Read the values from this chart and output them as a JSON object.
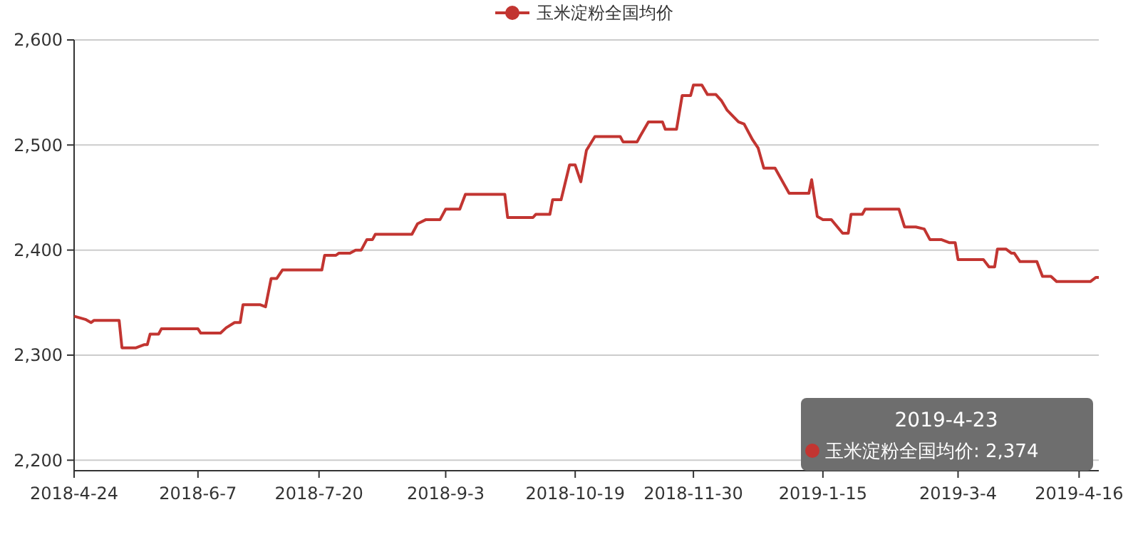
{
  "chart_data": {
    "type": "line",
    "legend": "top",
    "grid": "y",
    "marker": "none",
    "line_style": "solid",
    "xlim": [
      "2018-04-24",
      "2019-04-23"
    ],
    "xticks": [
      {
        "value": "2018-04-24",
        "label": "2018-4-24"
      },
      {
        "value": "2018-06-07",
        "label": "2018-6-7"
      },
      {
        "value": "2018-07-20",
        "label": "2018-7-20"
      },
      {
        "value": "2018-09-03",
        "label": "2018-9-3"
      },
      {
        "value": "2018-10-19",
        "label": "2018-10-19"
      },
      {
        "value": "2018-11-30",
        "label": "2018-11-30"
      },
      {
        "value": "2019-01-15",
        "label": "2019-1-15"
      },
      {
        "value": "2019-03-04",
        "label": "2019-3-4"
      },
      {
        "value": "2019-04-16",
        "label": "2019-4-16"
      }
    ],
    "ylim": [
      2190,
      2600
    ],
    "yticks": [
      {
        "value": 2200,
        "label": "2,200"
      },
      {
        "value": 2300,
        "label": "2,300"
      },
      {
        "value": 2400,
        "label": "2,400"
      },
      {
        "value": 2500,
        "label": "2,500"
      },
      {
        "value": 2600,
        "label": "2,600"
      }
    ],
    "annotations": [
      "2019-4-23",
      "玉米淀粉全国均价: 2,374"
    ],
    "x": [
      "2018-04-24",
      "2018-04-28",
      "2018-04-30",
      "2018-05-01",
      "2018-05-10",
      "2018-05-11",
      "2018-05-16",
      "2018-05-19",
      "2018-05-20",
      "2018-05-21",
      "2018-05-24",
      "2018-05-25",
      "2018-06-07",
      "2018-06-08",
      "2018-06-15",
      "2018-06-17",
      "2018-06-20",
      "2018-06-22",
      "2018-06-23",
      "2018-06-29",
      "2018-07-01",
      "2018-07-03",
      "2018-07-05",
      "2018-07-07",
      "2018-07-21",
      "2018-07-22",
      "2018-07-26",
      "2018-07-27",
      "2018-07-31",
      "2018-08-02",
      "2018-08-04",
      "2018-08-06",
      "2018-08-08",
      "2018-08-09",
      "2018-08-22",
      "2018-08-24",
      "2018-08-27",
      "2018-09-01",
      "2018-09-03",
      "2018-09-08",
      "2018-09-10",
      "2018-09-24",
      "2018-09-25",
      "2018-10-04",
      "2018-10-05",
      "2018-10-10",
      "2018-10-11",
      "2018-10-14",
      "2018-10-17",
      "2018-10-19",
      "2018-10-21",
      "2018-10-23",
      "2018-10-26",
      "2018-11-04",
      "2018-11-05",
      "2018-11-10",
      "2018-11-11",
      "2018-11-14",
      "2018-11-19",
      "2018-11-20",
      "2018-11-24",
      "2018-11-26",
      "2018-11-29",
      "2018-11-30",
      "2018-12-03",
      "2018-12-05",
      "2018-12-08",
      "2018-12-10",
      "2018-12-12",
      "2018-12-16",
      "2018-12-18",
      "2018-12-21",
      "2018-12-23",
      "2018-12-25",
      "2018-12-29",
      "2019-01-03",
      "2019-01-10",
      "2019-01-11",
      "2019-01-13",
      "2019-01-15",
      "2019-01-18",
      "2019-01-22",
      "2019-01-24",
      "2019-01-25",
      "2019-01-29",
      "2019-01-30",
      "2019-02-11",
      "2019-02-13",
      "2019-02-17",
      "2019-02-20",
      "2019-02-22",
      "2019-02-26",
      "2019-03-01",
      "2019-03-03",
      "2019-03-04",
      "2019-03-13",
      "2019-03-15",
      "2019-03-17",
      "2019-03-18",
      "2019-03-21",
      "2019-03-23",
      "2019-03-24",
      "2019-03-26",
      "2019-04-01",
      "2019-04-03",
      "2019-04-06",
      "2019-04-08",
      "2019-04-20",
      "2019-04-22",
      "2019-04-23"
    ],
    "series": [
      {
        "name": "玉米淀粉全国均价",
        "color": "#c23531",
        "values": [
          2337,
          2334,
          2331,
          2333,
          2333,
          2307,
          2307,
          2310,
          2310,
          2320,
          2320,
          2325,
          2325,
          2321,
          2321,
          2326,
          2331,
          2331,
          2348,
          2348,
          2346,
          2373,
          2373,
          2381,
          2381,
          2395,
          2395,
          2397,
          2397,
          2400,
          2400,
          2410,
          2410,
          2415,
          2415,
          2425,
          2429,
          2429,
          2439,
          2439,
          2453,
          2453,
          2431,
          2431,
          2434,
          2434,
          2448,
          2448,
          2481,
          2481,
          2465,
          2495,
          2508,
          2508,
          2503,
          2503,
          2508,
          2522,
          2522,
          2515,
          2515,
          2547,
          2547,
          2557,
          2557,
          2548,
          2548,
          2542,
          2533,
          2522,
          2520,
          2505,
          2497,
          2478,
          2478,
          2454,
          2454,
          2467,
          2432,
          2429,
          2429,
          2416,
          2416,
          2434,
          2434,
          2439,
          2439,
          2422,
          2422,
          2420,
          2410,
          2410,
          2407,
          2407,
          2391,
          2391,
          2384,
          2384,
          2401,
          2401,
          2397,
          2397,
          2389,
          2389,
          2375,
          2375,
          2370,
          2370,
          2374,
          2374
        ]
      }
    ]
  }
}
